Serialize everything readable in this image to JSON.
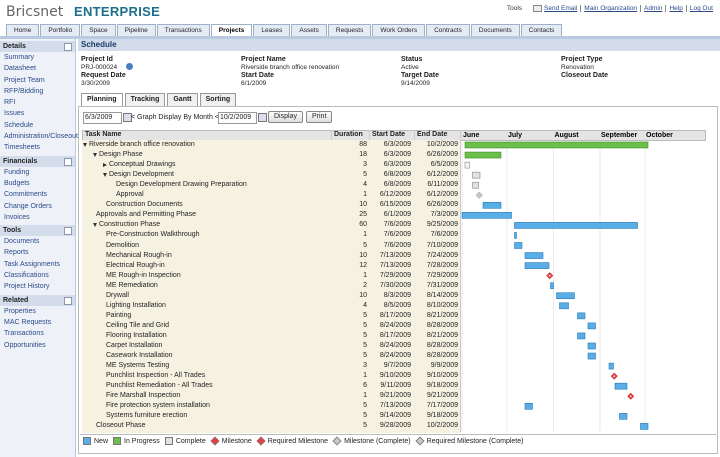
{
  "header": {
    "brand": "Bricsnet",
    "product": "ENTERPRISE",
    "tools_label": "Tools",
    "links": [
      "Send Email",
      "Main Organization",
      "Admin",
      "Help",
      "Log Out"
    ]
  },
  "nav": {
    "tabs": [
      "Home",
      "Portfolio",
      "Space",
      "Pipeline",
      "Transactions",
      "Projects",
      "Leases",
      "Assets",
      "Requests",
      "Work Orders",
      "Contracts",
      "Documents",
      "Contacts"
    ],
    "active": 5
  },
  "sidebar": {
    "sections": [
      {
        "title": "Details",
        "items": [
          "Summary",
          "Datasheet",
          "Project Team",
          "RFP/Bidding",
          "RFI",
          "Issues",
          "Schedule",
          "Administration/Closeout",
          "Timesheets"
        ]
      },
      {
        "title": "Financials",
        "items": [
          "Funding",
          "Budgets",
          "Commitments",
          "Change Orders",
          "Invoices"
        ]
      },
      {
        "title": "Tools",
        "items": [
          "Documents",
          "Reports",
          "Task Assignments",
          "Classifications",
          "Project History"
        ]
      },
      {
        "title": "Related",
        "items": [
          "Properties",
          "MAC Requests",
          "Transactions",
          "Opportunities"
        ]
      }
    ]
  },
  "page": {
    "title": "Schedule",
    "fields": [
      {
        "label": "Project Id",
        "value": "PRJ-000024"
      },
      {
        "label": "Project Name",
        "value": "Riverside branch office renovation"
      },
      {
        "label": "Status",
        "value": "Active"
      },
      {
        "label": "Project Type",
        "value": "Renovation"
      },
      {
        "label": "Request Date",
        "value": "3/30/2009"
      },
      {
        "label": "Start Date",
        "value": "6/1/2009"
      },
      {
        "label": "Target Date",
        "value": "9/14/2009"
      },
      {
        "label": "Closeout Date"
      }
    ]
  },
  "tabs": {
    "items": [
      "Planning",
      "Tracking",
      "Gantt",
      "Sorting"
    ],
    "active": 0
  },
  "controls": {
    "from": "6/3/2009",
    "graph_label": "< Graph Display By Month <",
    "to": "10/2/2009",
    "buttons": [
      "Display",
      "Print"
    ]
  },
  "table": {
    "headers": [
      "Task Name",
      "Duration",
      "Start Date",
      "End Date"
    ],
    "months": [
      "June",
      "July",
      "August",
      "September",
      "October"
    ],
    "rows": [
      {
        "name": "Riverside branch office renovation",
        "level": 0,
        "expanded": true,
        "duration": 88,
        "start": "6/3/2009",
        "end": "10/2/2009",
        "marker": "bar",
        "color": "#6cbf4a"
      },
      {
        "name": "Design Phase",
        "level": 1,
        "expanded": true,
        "duration": 18,
        "start": "6/3/2009",
        "end": "6/26/2009",
        "marker": "bar",
        "color": "#6cbf4a"
      },
      {
        "name": "Conceptual Drawings",
        "level": 2,
        "expanded": false,
        "duration": 3,
        "start": "6/3/2009",
        "end": "6/5/2009",
        "marker": "bar",
        "color": "#f4f4f4"
      },
      {
        "name": "Design Development",
        "level": 2,
        "expanded": true,
        "duration": 5,
        "start": "6/8/2009",
        "end": "6/12/2009",
        "marker": "bar",
        "color": "#e2e2e2"
      },
      {
        "name": "Design Development Drawing Preparation",
        "level": 3,
        "duration": 4,
        "start": "6/8/2009",
        "end": "6/11/2009",
        "marker": "bar",
        "color": "#e2e2e2"
      },
      {
        "name": "Approval",
        "level": 3,
        "duration": 1,
        "start": "6/12/2009",
        "end": "6/12/2009",
        "marker": "diamond",
        "color": "#c8c8c8"
      },
      {
        "name": "Construction Documents",
        "level": 2,
        "duration": 10,
        "start": "6/15/2009",
        "end": "6/26/2009",
        "marker": "bar",
        "color": "#5aaee8"
      },
      {
        "name": "Approvals and Permitting Phase",
        "level": 1,
        "duration": 25,
        "start": "6/1/2009",
        "end": "7/3/2009",
        "marker": "bar",
        "color": "#5aaee8"
      },
      {
        "name": "Construction Phase",
        "level": 1,
        "expanded": true,
        "duration": 60,
        "start": "7/6/2009",
        "end": "9/25/2009",
        "marker": "bar",
        "color": "#5aaee8"
      },
      {
        "name": "Pre-Construction Walkthrough",
        "level": 2,
        "duration": 1,
        "start": "7/6/2009",
        "end": "7/6/2009",
        "marker": "bar",
        "color": "#5aaee8"
      },
      {
        "name": "Demolition",
        "level": 2,
        "duration": 5,
        "start": "7/6/2009",
        "end": "7/10/2009",
        "marker": "bar",
        "color": "#5aaee8"
      },
      {
        "name": "Mechanical Rough-in",
        "level": 2,
        "duration": 10,
        "start": "7/13/2009",
        "end": "7/24/2009",
        "marker": "bar",
        "color": "#5aaee8"
      },
      {
        "name": "Electrical Rough-in",
        "level": 2,
        "duration": 12,
        "start": "7/13/2009",
        "end": "7/28/2009",
        "marker": "bar",
        "color": "#5aaee8"
      },
      {
        "name": "ME Rough-in Inspection",
        "level": 2,
        "duration": 1,
        "start": "7/29/2009",
        "end": "7/29/2009",
        "marker": "required-diamond",
        "color": "#e84040"
      },
      {
        "name": "ME Remediation",
        "level": 2,
        "duration": 2,
        "start": "7/30/2009",
        "end": "7/31/2009",
        "marker": "bar",
        "color": "#5aaee8"
      },
      {
        "name": "Drywall",
        "level": 2,
        "duration": 10,
        "start": "8/3/2009",
        "end": "8/14/2009",
        "marker": "bar",
        "color": "#5aaee8"
      },
      {
        "name": "Lighting Installation",
        "level": 2,
        "duration": 4,
        "start": "8/5/2009",
        "end": "8/10/2009",
        "marker": "bar",
        "color": "#5aaee8"
      },
      {
        "name": "Painting",
        "level": 2,
        "duration": 5,
        "start": "8/17/2009",
        "end": "8/21/2009",
        "marker": "bar",
        "color": "#5aaee8"
      },
      {
        "name": "Ceiling Tile and Grid",
        "level": 2,
        "duration": 5,
        "start": "8/24/2009",
        "end": "8/28/2009",
        "marker": "bar",
        "color": "#5aaee8"
      },
      {
        "name": "Flooring Installation",
        "level": 2,
        "duration": 5,
        "start": "8/17/2009",
        "end": "8/21/2009",
        "marker": "bar",
        "color": "#5aaee8"
      },
      {
        "name": "Carpet Installation",
        "level": 2,
        "duration": 5,
        "start": "8/24/2009",
        "end": "8/28/2009",
        "marker": "bar",
        "color": "#5aaee8"
      },
      {
        "name": "Casework Installation",
        "level": 2,
        "duration": 5,
        "start": "8/24/2009",
        "end": "8/28/2009",
        "marker": "bar",
        "color": "#5aaee8"
      },
      {
        "name": "ME Systems Testing",
        "level": 2,
        "duration": 3,
        "start": "9/7/2009",
        "end": "9/9/2009",
        "marker": "bar",
        "color": "#5aaee8"
      },
      {
        "name": "Punchlist Inspection - All Trades",
        "level": 2,
        "duration": 1,
        "start": "9/10/2009",
        "end": "9/10/2009",
        "marker": "required-diamond",
        "color": "#e84040"
      },
      {
        "name": "Punchlist Remediation - All Trades",
        "level": 2,
        "duration": 6,
        "start": "9/11/2009",
        "end": "9/18/2009",
        "marker": "bar",
        "color": "#5aaee8"
      },
      {
        "name": "Fire Marshall Inspection",
        "level": 2,
        "duration": 1,
        "start": "9/21/2009",
        "end": "9/21/2009",
        "marker": "required-diamond",
        "color": "#e84040"
      },
      {
        "name": "Fire protection system installation",
        "level": 2,
        "duration": 5,
        "start": "7/13/2009",
        "end": "7/17/2009",
        "marker": "bar",
        "color": "#5aaee8"
      },
      {
        "name": "Systems furniture erection",
        "level": 2,
        "duration": 5,
        "start": "9/14/2009",
        "end": "9/18/2009",
        "marker": "bar",
        "color": "#5aaee8"
      },
      {
        "name": "Closeout Phase",
        "level": 1,
        "duration": 5,
        "start": "9/28/2009",
        "end": "10/2/2009",
        "marker": "bar",
        "color": "#5aaee8"
      }
    ]
  },
  "legend": [
    {
      "label": "New",
      "color": "#5aaee8",
      "shape": "square"
    },
    {
      "label": "In Progress",
      "color": "#6cbf4a",
      "shape": "square"
    },
    {
      "label": "Complete",
      "color": "#e2e2e2",
      "shape": "square"
    },
    {
      "label": "Milestone",
      "color": "#e84040",
      "shape": "diamond"
    },
    {
      "label": "Required Milestone",
      "color": "#e84040",
      "shape": "diamond"
    },
    {
      "label": "Milestone (Complete)",
      "color": "#c8c8c8",
      "shape": "diamond"
    },
    {
      "label": "Required Milestone (Complete)",
      "color": "#c8c8c8",
      "shape": "diamond"
    }
  ]
}
